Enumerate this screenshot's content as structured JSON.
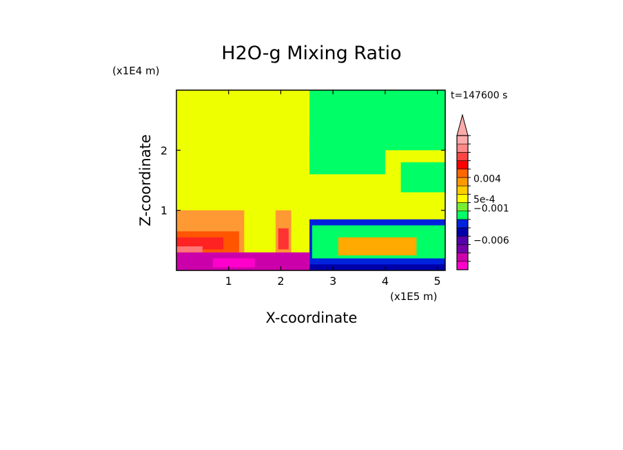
{
  "chart_data": {
    "type": "heatmap",
    "title": "H2O-g Mixing Ratio",
    "xlabel": "X-coordinate",
    "ylabel": "Z-coordinate",
    "x_scale_label": "(x1E5 m)",
    "y_scale_label": "(x1E4 m)",
    "time_label": "t=147600 s",
    "xlim": [
      0,
      5.15
    ],
    "ylim": [
      0,
      3.0
    ],
    "x_ticks": [
      1,
      2,
      3,
      4,
      5
    ],
    "y_ticks": [
      1,
      2
    ],
    "x_tick_labels": [
      "1",
      "2",
      "3",
      "4",
      "5"
    ],
    "y_tick_labels": [
      "1",
      "2"
    ],
    "grid": false,
    "colorbar": {
      "colors": [
        "#ff00cc",
        "#cc00aa",
        "#7700aa",
        "#5500aa",
        "#0000aa",
        "#0022dd",
        "#00ff66",
        "#77ee33",
        "#ffff00",
        "#ffcc00",
        "#ff9900",
        "#ff6600",
        "#ff0000",
        "#ff4444",
        "#ff8888",
        "#ffaaaa"
      ],
      "labels": [
        {
          "text": "0.004",
          "pos": 0.68
        },
        {
          "text": "5e-4",
          "pos": 0.525
        },
        {
          "text": "−0.001",
          "pos": 0.46
        },
        {
          "text": "−0.006",
          "pos": 0.22
        }
      ]
    },
    "regions": [
      {
        "color": "#eeff00",
        "x": [
          0,
          5.15
        ],
        "y": [
          0,
          3.0
        ]
      },
      {
        "color": "#ff9933",
        "x": [
          0,
          1.3
        ],
        "y": [
          0.3,
          1.0
        ]
      },
      {
        "color": "#ff5500",
        "x": [
          0,
          1.2
        ],
        "y": [
          0.3,
          0.65
        ]
      },
      {
        "color": "#ff2222",
        "x": [
          0,
          0.9
        ],
        "y": [
          0.35,
          0.55
        ]
      },
      {
        "color": "#ff7777",
        "x": [
          0,
          0.5
        ],
        "y": [
          0.3,
          0.4
        ]
      },
      {
        "color": "#ff9933",
        "x": [
          1.9,
          2.2
        ],
        "y": [
          0.3,
          1.0
        ]
      },
      {
        "color": "#ff3333",
        "x": [
          1.95,
          2.15
        ],
        "y": [
          0.35,
          0.7
        ]
      },
      {
        "color": "#cc00aa",
        "x": [
          0,
          2.55
        ],
        "y": [
          0.0,
          0.3
        ]
      },
      {
        "color": "#ff00cc",
        "x": [
          0.7,
          1.5
        ],
        "y": [
          0.05,
          0.2
        ]
      },
      {
        "color": "#0022dd",
        "x": [
          2.55,
          5.15
        ],
        "y": [
          0.0,
          0.85
        ]
      },
      {
        "color": "#00ff66",
        "x": [
          2.6,
          5.15
        ],
        "y": [
          0.2,
          0.75
        ]
      },
      {
        "color": "#ffaa00",
        "x": [
          3.1,
          4.6
        ],
        "y": [
          0.25,
          0.55
        ]
      },
      {
        "color": "#0000aa",
        "x": [
          2.55,
          5.15
        ],
        "y": [
          0.0,
          0.1
        ]
      },
      {
        "color": "#00ff66",
        "x": [
          2.55,
          5.15
        ],
        "y": [
          2.0,
          3.0
        ]
      },
      {
        "color": "#00ff66",
        "x": [
          2.55,
          4.0
        ],
        "y": [
          1.6,
          2.2
        ]
      },
      {
        "color": "#00ff66",
        "x": [
          4.3,
          5.15
        ],
        "y": [
          1.3,
          1.8
        ]
      }
    ]
  }
}
